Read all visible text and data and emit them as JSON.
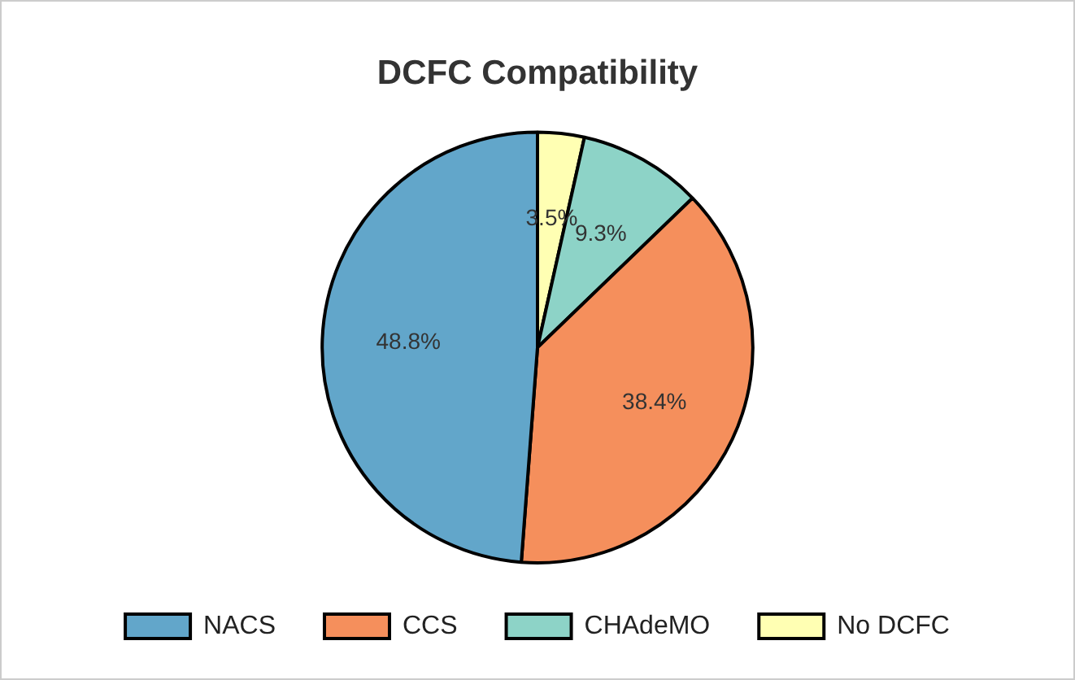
{
  "chart_data": {
    "type": "pie",
    "title": "DCFC Compatibility",
    "categories": [
      "No DCFC",
      "CHAdeMO",
      "CCS",
      "NACS"
    ],
    "values": [
      3.5,
      9.3,
      38.4,
      48.8
    ],
    "colors": [
      "#ffffb3",
      "#8dd3c7",
      "#f58f5c",
      "#62a6ca"
    ],
    "value_labels": [
      "3.5%",
      "9.3%",
      "38.4%",
      "48.8%"
    ],
    "legend": "bottom"
  }
}
